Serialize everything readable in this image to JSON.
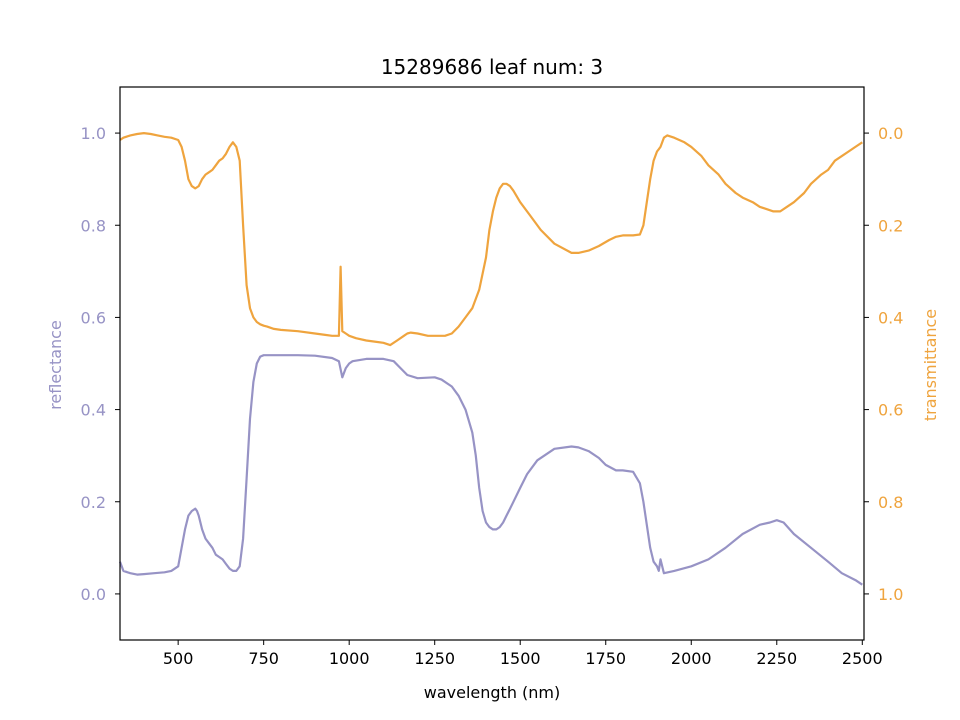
{
  "chart_data": {
    "type": "line",
    "title": "15289686 leaf num: 3",
    "xlabel": "wavelength (nm)",
    "ylabel_left": "reflectance",
    "ylabel_right": "transmittance",
    "xlim": [
      330,
      2505
    ],
    "ylim_left": [
      -0.1,
      1.1
    ],
    "ylim_right_inverted": [
      1.1,
      -0.1
    ],
    "x_ticks": [
      500,
      750,
      1000,
      1250,
      1500,
      1750,
      2000,
      2250,
      2500
    ],
    "y_ticks_left": [
      "0.0",
      "0.2",
      "0.4",
      "0.6",
      "0.8",
      "1.0"
    ],
    "y_ticks_right": [
      "0.0",
      "0.2",
      "0.4",
      "0.6",
      "0.8",
      "1.0"
    ],
    "grid": false,
    "colors": {
      "reflectance": "#9793c5",
      "transmittance": "#efa43e",
      "axis": "#000000"
    },
    "series": [
      {
        "name": "reflectance",
        "axis": "left",
        "x": [
          330,
          340,
          360,
          380,
          400,
          430,
          460,
          480,
          500,
          510,
          520,
          530,
          540,
          550,
          555,
          560,
          570,
          580,
          590,
          600,
          610,
          620,
          630,
          640,
          650,
          660,
          670,
          680,
          690,
          700,
          710,
          720,
          730,
          740,
          750,
          760,
          780,
          800,
          850,
          900,
          950,
          970,
          980,
          990,
          1000,
          1010,
          1050,
          1100,
          1130,
          1150,
          1170,
          1200,
          1250,
          1270,
          1300,
          1320,
          1340,
          1360,
          1370,
          1380,
          1390,
          1400,
          1410,
          1420,
          1430,
          1440,
          1450,
          1460,
          1470,
          1480,
          1500,
          1520,
          1550,
          1600,
          1650,
          1670,
          1700,
          1730,
          1750,
          1780,
          1800,
          1830,
          1850,
          1860,
          1870,
          1880,
          1890,
          1900,
          1905,
          1910,
          1920,
          1950,
          2000,
          2050,
          2100,
          2150,
          2200,
          2230,
          2250,
          2270,
          2300,
          2350,
          2400,
          2440,
          2480,
          2500
        ],
        "y": [
          0.07,
          0.05,
          0.045,
          0.042,
          0.043,
          0.045,
          0.047,
          0.05,
          0.06,
          0.1,
          0.14,
          0.17,
          0.18,
          0.185,
          0.18,
          0.17,
          0.14,
          0.12,
          0.11,
          0.1,
          0.085,
          0.08,
          0.075,
          0.065,
          0.055,
          0.05,
          0.05,
          0.06,
          0.12,
          0.25,
          0.38,
          0.46,
          0.5,
          0.515,
          0.518,
          0.518,
          0.518,
          0.518,
          0.518,
          0.517,
          0.512,
          0.505,
          0.47,
          0.49,
          0.5,
          0.505,
          0.51,
          0.51,
          0.505,
          0.49,
          0.475,
          0.468,
          0.47,
          0.465,
          0.45,
          0.43,
          0.4,
          0.35,
          0.3,
          0.23,
          0.18,
          0.155,
          0.145,
          0.14,
          0.14,
          0.145,
          0.155,
          0.17,
          0.185,
          0.2,
          0.23,
          0.26,
          0.29,
          0.315,
          0.32,
          0.318,
          0.31,
          0.295,
          0.28,
          0.268,
          0.268,
          0.265,
          0.24,
          0.2,
          0.15,
          0.1,
          0.07,
          0.06,
          0.05,
          0.075,
          0.045,
          0.05,
          0.06,
          0.075,
          0.1,
          0.13,
          0.15,
          0.155,
          0.16,
          0.155,
          0.13,
          0.1,
          0.07,
          0.045,
          0.03,
          0.02
        ]
      },
      {
        "name": "transmittance",
        "axis": "right",
        "x": [
          330,
          340,
          360,
          380,
          400,
          420,
          440,
          460,
          480,
          500,
          510,
          520,
          530,
          540,
          550,
          560,
          570,
          580,
          590,
          600,
          610,
          620,
          630,
          640,
          650,
          660,
          670,
          680,
          690,
          700,
          710,
          720,
          730,
          740,
          750,
          760,
          780,
          800,
          850,
          900,
          930,
          950,
          970,
          975,
          980,
          990,
          1000,
          1020,
          1050,
          1100,
          1120,
          1140,
          1160,
          1170,
          1180,
          1200,
          1230,
          1250,
          1280,
          1300,
          1320,
          1340,
          1360,
          1380,
          1400,
          1410,
          1420,
          1430,
          1440,
          1450,
          1460,
          1470,
          1480,
          1500,
          1530,
          1560,
          1600,
          1650,
          1670,
          1700,
          1730,
          1760,
          1780,
          1800,
          1830,
          1850,
          1860,
          1870,
          1880,
          1890,
          1900,
          1905,
          1910,
          1920,
          1930,
          1950,
          1980,
          2000,
          2030,
          2050,
          2080,
          2100,
          2130,
          2150,
          2180,
          2200,
          2220,
          2240,
          2260,
          2280,
          2300,
          2330,
          2350,
          2380,
          2400,
          2420,
          2440,
          2460,
          2480,
          2500
        ],
        "y": [
          0.015,
          0.01,
          0.005,
          0.002,
          0.0,
          0.002,
          0.005,
          0.008,
          0.01,
          0.015,
          0.03,
          0.06,
          0.1,
          0.115,
          0.12,
          0.115,
          0.1,
          0.09,
          0.085,
          0.08,
          0.07,
          0.06,
          0.055,
          0.045,
          0.03,
          0.02,
          0.03,
          0.06,
          0.2,
          0.33,
          0.38,
          0.4,
          0.41,
          0.415,
          0.418,
          0.42,
          0.425,
          0.427,
          0.43,
          0.435,
          0.438,
          0.44,
          0.44,
          0.29,
          0.43,
          0.435,
          0.44,
          0.445,
          0.45,
          0.455,
          0.46,
          0.45,
          0.44,
          0.435,
          0.433,
          0.435,
          0.44,
          0.44,
          0.44,
          0.435,
          0.42,
          0.4,
          0.38,
          0.34,
          0.27,
          0.21,
          0.17,
          0.14,
          0.12,
          0.11,
          0.11,
          0.115,
          0.125,
          0.15,
          0.18,
          0.21,
          0.24,
          0.26,
          0.26,
          0.255,
          0.245,
          0.232,
          0.225,
          0.222,
          0.222,
          0.22,
          0.2,
          0.15,
          0.1,
          0.06,
          0.04,
          0.035,
          0.03,
          0.01,
          0.005,
          0.01,
          0.02,
          0.03,
          0.05,
          0.07,
          0.09,
          0.11,
          0.13,
          0.14,
          0.15,
          0.16,
          0.165,
          0.17,
          0.17,
          0.16,
          0.15,
          0.13,
          0.11,
          0.09,
          0.08,
          0.06,
          0.05,
          0.04,
          0.03,
          0.02
        ]
      }
    ]
  }
}
